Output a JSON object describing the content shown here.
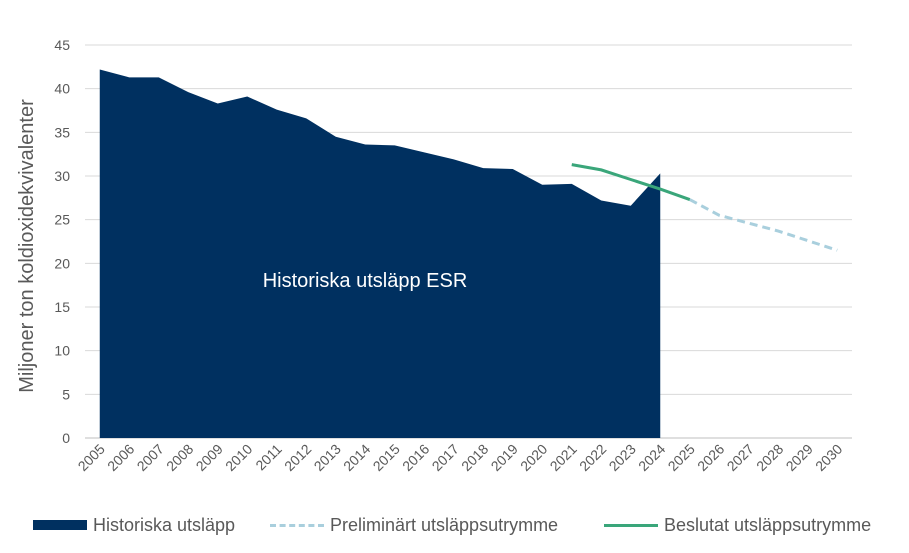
{
  "chart_data": {
    "type": "area",
    "title": "",
    "xlabel": "",
    "ylabel": "Miljoner ton koldioxidekvivalenter",
    "ylim": [
      0,
      45
    ],
    "yticks": [
      0,
      5,
      10,
      15,
      20,
      25,
      30,
      35,
      40,
      45
    ],
    "grid": true,
    "legend_position": "bottom",
    "categories": [
      "2005",
      "2006",
      "2007",
      "2008",
      "2009",
      "2010",
      "2011",
      "2012",
      "2013",
      "2014",
      "2015",
      "2016",
      "2017",
      "2018",
      "2019",
      "2020",
      "2021",
      "2022",
      "2023",
      "2024",
      "2025",
      "2026",
      "2027",
      "2028",
      "2029",
      "2030"
    ],
    "area_annotation": "Historiska utsläpp ESR",
    "series": [
      {
        "name": "Historiska utsläpp",
        "kind": "area",
        "color": "#003060",
        "x": [
          "2005",
          "2006",
          "2007",
          "2008",
          "2009",
          "2010",
          "2011",
          "2012",
          "2013",
          "2014",
          "2015",
          "2016",
          "2017",
          "2018",
          "2019",
          "2020",
          "2021",
          "2022",
          "2023",
          "2024"
        ],
        "values": [
          42.2,
          41.3,
          41.3,
          39.6,
          38.3,
          39.1,
          37.6,
          36.6,
          34.5,
          33.6,
          33.5,
          32.7,
          31.9,
          30.9,
          30.8,
          29.0,
          29.1,
          27.2,
          26.6,
          30.3
        ]
      },
      {
        "name": "Preliminärt utsläppsutrymme",
        "kind": "dashed-line",
        "color": "#a9cfdd",
        "x": [
          "2025",
          "2026",
          "2027",
          "2028",
          "2029",
          "2030"
        ],
        "values": [
          27.3,
          25.5,
          24.6,
          23.7,
          22.6,
          21.5
        ]
      },
      {
        "name": "Beslutat utsläppsutrymme",
        "kind": "line",
        "color": "#3aa67a",
        "x": [
          "2021",
          "2022",
          "2023",
          "2024",
          "2025"
        ],
        "values": [
          31.3,
          30.7,
          29.6,
          28.5,
          27.3
        ]
      }
    ]
  }
}
